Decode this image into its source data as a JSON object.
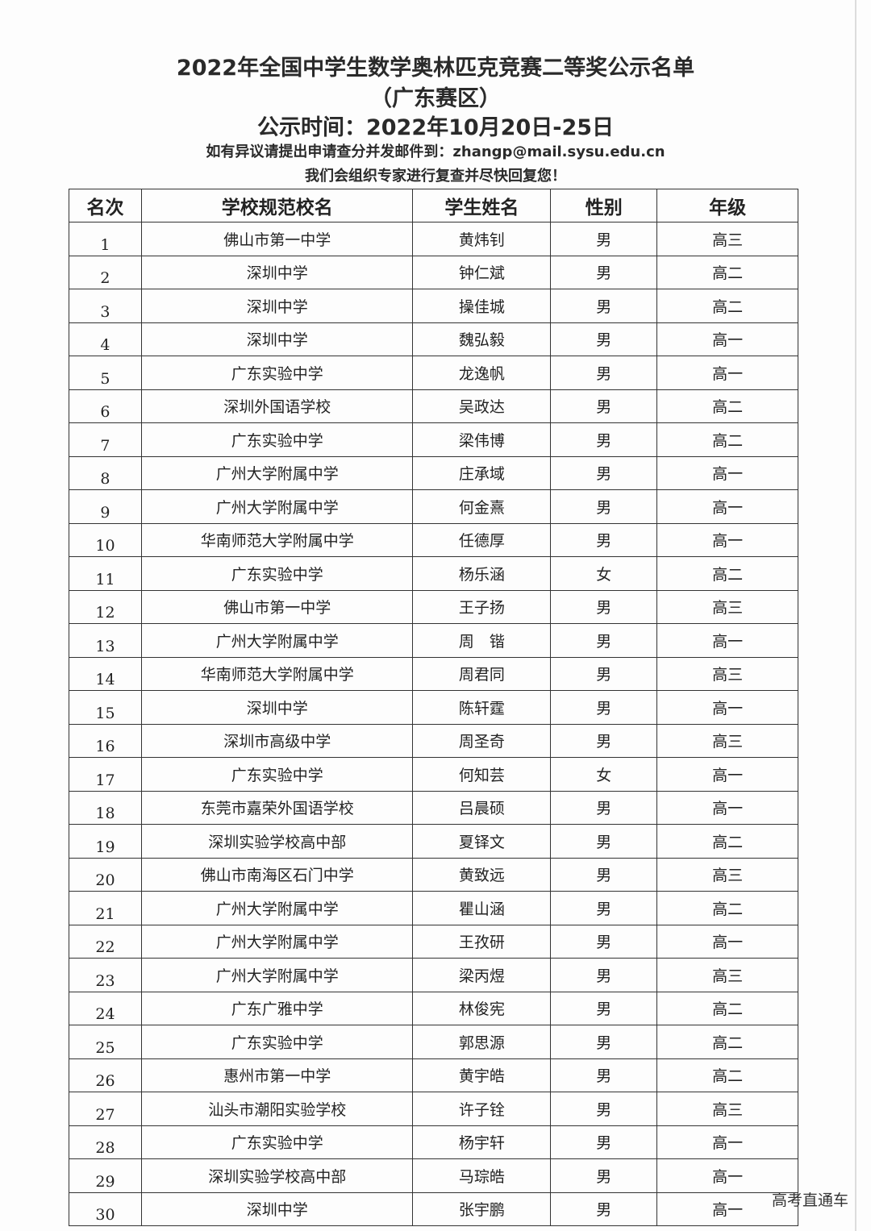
{
  "header": {
    "title": "2022年全国中学生数学奥林匹克竞赛二等奖公示名单",
    "region": "（广东赛区）",
    "period": "公示时间：2022年10月20日-25日",
    "appeal": "如有异议请提出申请查分并发邮件到：zhangp@mail.sysu.edu.cn",
    "review": "我们会组织专家进行复查并尽快回复您！"
  },
  "table": {
    "columns": [
      "名次",
      "学校规范校名",
      "学生姓名",
      "性别",
      "年级"
    ],
    "rows": [
      [
        "1",
        "佛山市第一中学",
        "黄炜钊",
        "男",
        "高三"
      ],
      [
        "2",
        "深圳中学",
        "钟仁斌",
        "男",
        "高二"
      ],
      [
        "3",
        "深圳中学",
        "操佳城",
        "男",
        "高二"
      ],
      [
        "4",
        "深圳中学",
        "魏弘毅",
        "男",
        "高一"
      ],
      [
        "5",
        "广东实验中学",
        "龙逸帆",
        "男",
        "高一"
      ],
      [
        "6",
        "深圳外国语学校",
        "吴政达",
        "男",
        "高二"
      ],
      [
        "7",
        "广东实验中学",
        "梁伟博",
        "男",
        "高二"
      ],
      [
        "8",
        "广州大学附属中学",
        "庄承域",
        "男",
        "高一"
      ],
      [
        "9",
        "广州大学附属中学",
        "何金熹",
        "男",
        "高一"
      ],
      [
        "10",
        "华南师范大学附属中学",
        "任德厚",
        "男",
        "高一"
      ],
      [
        "11",
        "广东实验中学",
        "杨乐涵",
        "女",
        "高二"
      ],
      [
        "12",
        "佛山市第一中学",
        "王子扬",
        "男",
        "高三"
      ],
      [
        "13",
        "广州大学附属中学",
        "周　锴",
        "男",
        "高一"
      ],
      [
        "14",
        "华南师范大学附属中学",
        "周君同",
        "男",
        "高三"
      ],
      [
        "15",
        "深圳中学",
        "陈轩霆",
        "男",
        "高一"
      ],
      [
        "16",
        "深圳市高级中学",
        "周圣奇",
        "男",
        "高三"
      ],
      [
        "17",
        "广东实验中学",
        "何知芸",
        "女",
        "高一"
      ],
      [
        "18",
        "东莞市嘉荣外国语学校",
        "吕晨硕",
        "男",
        "高一"
      ],
      [
        "19",
        "深圳实验学校高中部",
        "夏铎文",
        "男",
        "高二"
      ],
      [
        "20",
        "佛山市南海区石门中学",
        "黄致远",
        "男",
        "高三"
      ],
      [
        "21",
        "广州大学附属中学",
        "瞿山涵",
        "男",
        "高二"
      ],
      [
        "22",
        "广州大学附属中学",
        "王孜研",
        "男",
        "高一"
      ],
      [
        "23",
        "广州大学附属中学",
        "梁丙煜",
        "男",
        "高三"
      ],
      [
        "24",
        "广东广雅中学",
        "林俊宪",
        "男",
        "高二"
      ],
      [
        "25",
        "广东实验中学",
        "郭思源",
        "男",
        "高二"
      ],
      [
        "26",
        "惠州市第一中学",
        "黄宇皓",
        "男",
        "高二"
      ],
      [
        "27",
        "汕头市潮阳实验学校",
        "许子铨",
        "男",
        "高三"
      ],
      [
        "28",
        "广东实验中学",
        "杨宇轩",
        "男",
        "高一"
      ],
      [
        "29",
        "深圳实验学校高中部",
        "马琮皓",
        "男",
        "高一"
      ],
      [
        "30",
        "深圳中学",
        "张宇鹏",
        "男",
        "高一"
      ]
    ]
  },
  "watermark": "高考直通车"
}
